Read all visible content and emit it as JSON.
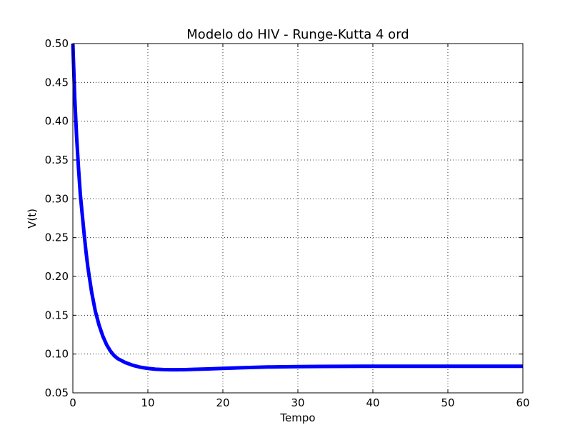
{
  "chart_data": {
    "type": "line",
    "title": "Modelo do HIV - Runge-Kutta 4 ord",
    "xlabel": "Tempo",
    "ylabel": "V(t)",
    "xlim": [
      0,
      60
    ],
    "ylim": [
      0.05,
      0.5
    ],
    "x_ticks": [
      "0",
      "10",
      "20",
      "30",
      "40",
      "50",
      "60"
    ],
    "y_ticks": [
      "0.05",
      "0.10",
      "0.15",
      "0.20",
      "0.25",
      "0.30",
      "0.35",
      "0.40",
      "0.45",
      "0.50"
    ],
    "grid": true,
    "legend": "none",
    "series": [
      {
        "color": "#0000ff",
        "x": [
          0,
          0.25,
          0.5,
          0.75,
          1,
          1.25,
          1.5,
          1.75,
          2,
          2.5,
          3,
          3.5,
          4,
          4.5,
          5,
          5.5,
          6,
          7,
          8,
          9,
          10,
          11,
          12,
          13,
          14,
          15,
          16,
          18,
          20,
          22,
          24,
          26,
          28,
          30,
          33,
          36,
          40,
          45,
          50,
          55,
          60
        ],
        "y": [
          0.5,
          0.43,
          0.38,
          0.34,
          0.305,
          0.28,
          0.255,
          0.232,
          0.212,
          0.18,
          0.155,
          0.137,
          0.123,
          0.112,
          0.104,
          0.098,
          0.094,
          0.089,
          0.0855,
          0.083,
          0.0815,
          0.0805,
          0.08,
          0.0798,
          0.0798,
          0.0799,
          0.0802,
          0.0808,
          0.0815,
          0.0822,
          0.0828,
          0.0833,
          0.0836,
          0.0838,
          0.084,
          0.0842,
          0.0843,
          0.0843,
          0.0843,
          0.0843,
          0.0843
        ]
      }
    ]
  }
}
